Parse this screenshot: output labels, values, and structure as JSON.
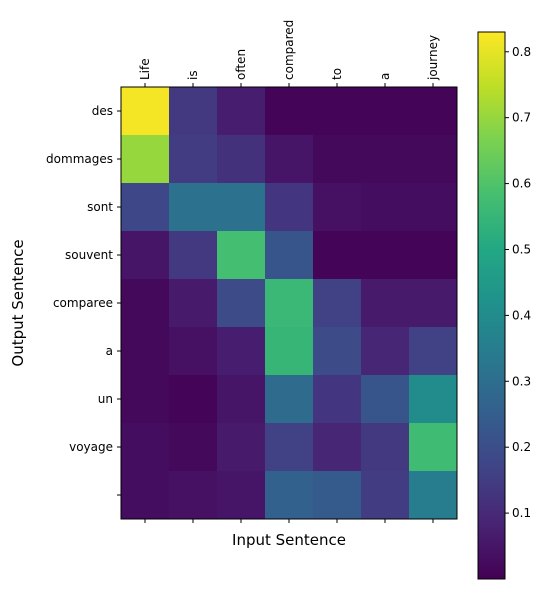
{
  "chart_data": {
    "type": "heatmap",
    "xlabel": "Input Sentence",
    "ylabel": "Output Sentence",
    "x_categories": [
      "Life",
      "is",
      "often",
      "compared",
      "to",
      "a",
      "journey"
    ],
    "y_categories": [
      "des",
      "dommages",
      "sont",
      "souvent",
      "comparee",
      "a",
      "un",
      "voyage",
      ""
    ],
    "values": [
      [
        0.82,
        0.14,
        0.07,
        0.01,
        0.01,
        0.01,
        0.01
      ],
      [
        0.7,
        0.15,
        0.12,
        0.05,
        0.02,
        0.02,
        0.02
      ],
      [
        0.18,
        0.31,
        0.31,
        0.13,
        0.04,
        0.03,
        0.03
      ],
      [
        0.05,
        0.14,
        0.58,
        0.22,
        0.01,
        0.01,
        0.01
      ],
      [
        0.02,
        0.06,
        0.19,
        0.56,
        0.16,
        0.06,
        0.06
      ],
      [
        0.02,
        0.04,
        0.07,
        0.55,
        0.19,
        0.09,
        0.16
      ],
      [
        0.02,
        0.01,
        0.05,
        0.29,
        0.13,
        0.22,
        0.4
      ],
      [
        0.03,
        0.02,
        0.06,
        0.16,
        0.09,
        0.14,
        0.57
      ],
      [
        0.03,
        0.04,
        0.05,
        0.26,
        0.24,
        0.15,
        0.35
      ]
    ],
    "colorbar": {
      "colormap": "viridis",
      "min": 0.0,
      "max": 0.83,
      "ticks": [
        "0.1",
        "0.2",
        "0.3",
        "0.4",
        "0.5",
        "0.6",
        "0.7",
        "0.8"
      ]
    },
    "grid": false,
    "x_tick_position": "top"
  }
}
